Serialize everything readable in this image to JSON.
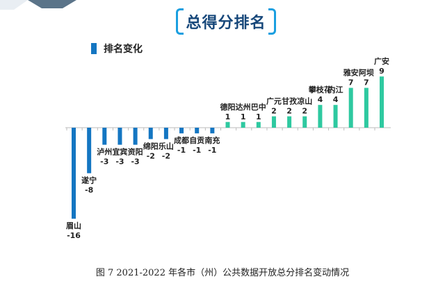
{
  "title": "总得分排名",
  "caption": "图 7 2021-2022 年各市（州）公共数据开放总分排名变动情况",
  "legend": {
    "label": "排名变化",
    "color": "#1476c2"
  },
  "colors": {
    "negative": "#1476c2",
    "positive": "#2ec9a0",
    "axis": "#bbbbbb",
    "accent": "#1a9fe0",
    "title": "#16477a"
  },
  "chart_data": {
    "type": "bar",
    "title": "总得分排名",
    "legend": [
      "排名变化"
    ],
    "categories": [
      "眉山",
      "遂宁",
      "泸州",
      "宜宾",
      "资阳",
      "绵阳",
      "乐山",
      "成都",
      "自贡",
      "南充",
      "德阳",
      "达州",
      "巴中",
      "广元",
      "甘孜",
      "凉山",
      "攀枝花",
      "内江",
      "雅安",
      "阿坝",
      "广安"
    ],
    "values": [
      -16,
      -8,
      -3,
      -3,
      -3,
      -2,
      -2,
      -1,
      -1,
      -1,
      1,
      1,
      1,
      2,
      2,
      2,
      4,
      4,
      7,
      7,
      9
    ],
    "ylim": [
      -16,
      9
    ],
    "grid": false
  }
}
